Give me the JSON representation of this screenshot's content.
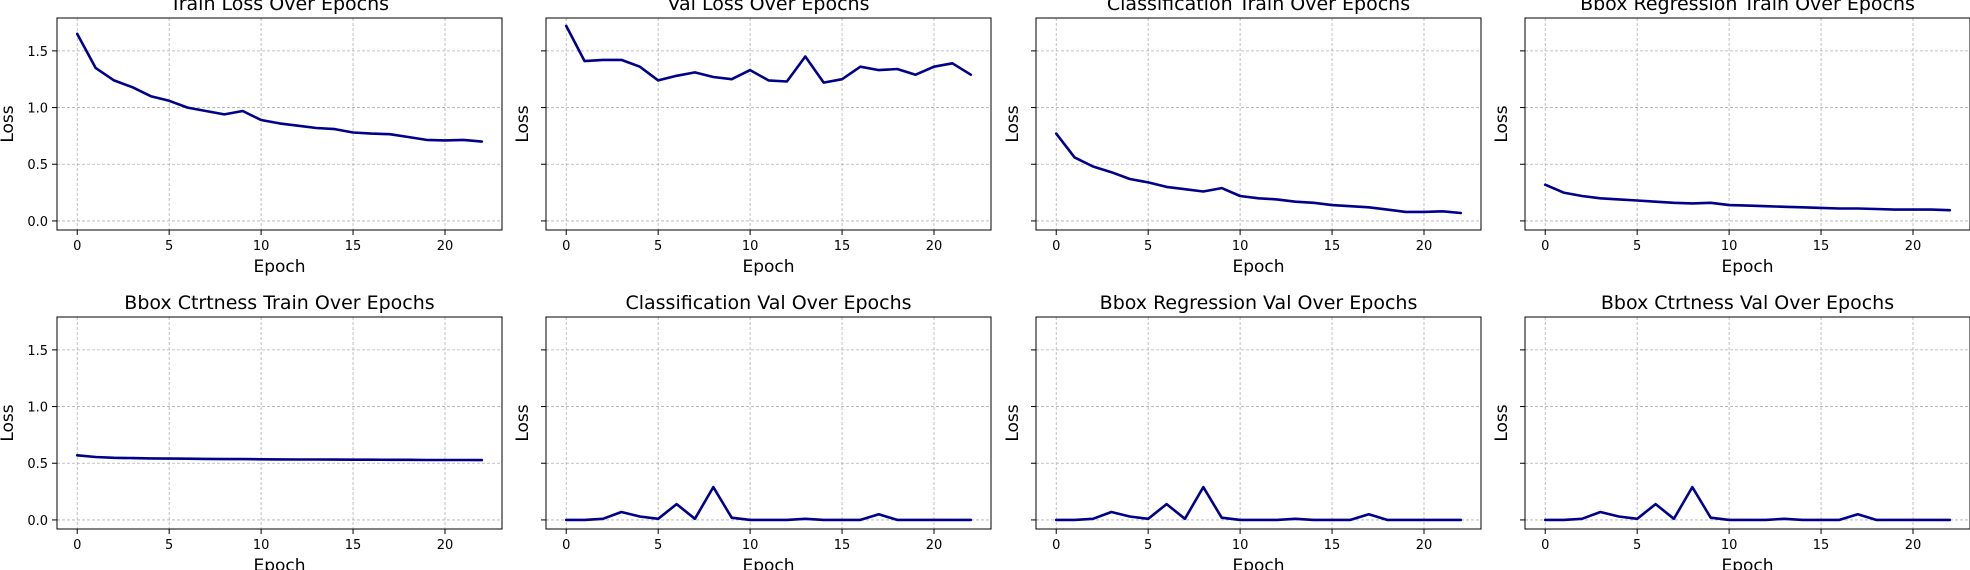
{
  "figure": {
    "line_color": "#00008b",
    "grid_color": "#b0b0b0"
  },
  "chart_data": [
    {
      "type": "line",
      "title": "Train Loss Over Epochs",
      "xlabel": "Epoch",
      "ylabel": "Loss",
      "xlim": [
        -1.1,
        23.1
      ],
      "ylim": [
        -0.08,
        1.79
      ],
      "xticks": [
        0,
        5,
        10,
        15,
        20
      ],
      "yticks": [
        0.0,
        0.5,
        1.0,
        1.5
      ],
      "ytick_labels": [
        "0.0",
        "0.5",
        "1.0",
        "1.5"
      ],
      "show_ytick_labels": true,
      "grid": true,
      "x": [
        0,
        1,
        2,
        3,
        4,
        5,
        6,
        7,
        8,
        9,
        10,
        11,
        12,
        13,
        14,
        15,
        16,
        17,
        18,
        19,
        20,
        21,
        22
      ],
      "series": [
        {
          "values": [
            1.65,
            1.35,
            1.24,
            1.18,
            1.1,
            1.06,
            1.0,
            0.97,
            0.94,
            0.97,
            0.89,
            0.86,
            0.84,
            0.82,
            0.81,
            0.78,
            0.77,
            0.765,
            0.74,
            0.715,
            0.71,
            0.715,
            0.7
          ]
        }
      ]
    },
    {
      "type": "line",
      "title": "Val Loss Over Epochs",
      "xlabel": "Epoch",
      "ylabel": "Loss",
      "xlim": [
        -1.1,
        23.1
      ],
      "ylim": [
        -0.08,
        1.79
      ],
      "xticks": [
        0,
        5,
        10,
        15,
        20
      ],
      "yticks": [
        0.0,
        0.5,
        1.0,
        1.5
      ],
      "ytick_labels": [
        "0.0",
        "0.5",
        "1.0",
        "1.5"
      ],
      "show_ytick_labels": false,
      "grid": true,
      "x": [
        0,
        1,
        2,
        3,
        4,
        5,
        6,
        7,
        8,
        9,
        10,
        11,
        12,
        13,
        14,
        15,
        16,
        17,
        18,
        19,
        20,
        21,
        22
      ],
      "series": [
        {
          "values": [
            1.72,
            1.41,
            1.42,
            1.42,
            1.36,
            1.24,
            1.28,
            1.31,
            1.27,
            1.25,
            1.33,
            1.24,
            1.23,
            1.45,
            1.22,
            1.25,
            1.36,
            1.33,
            1.34,
            1.29,
            1.36,
            1.39,
            1.29
          ]
        }
      ]
    },
    {
      "type": "line",
      "title": "Classification Train Over Epochs",
      "xlabel": "Epoch",
      "ylabel": "Loss",
      "xlim": [
        -1.1,
        23.1
      ],
      "ylim": [
        -0.08,
        1.79
      ],
      "xticks": [
        0,
        5,
        10,
        15,
        20
      ],
      "yticks": [
        0.0,
        0.5,
        1.0,
        1.5
      ],
      "ytick_labels": [
        "0.0",
        "0.5",
        "1.0",
        "1.5"
      ],
      "show_ytick_labels": false,
      "grid": true,
      "x": [
        0,
        1,
        2,
        3,
        4,
        5,
        6,
        7,
        8,
        9,
        10,
        11,
        12,
        13,
        14,
        15,
        16,
        17,
        18,
        19,
        20,
        21,
        22
      ],
      "series": [
        {
          "values": [
            0.77,
            0.56,
            0.48,
            0.43,
            0.37,
            0.34,
            0.3,
            0.28,
            0.26,
            0.29,
            0.22,
            0.2,
            0.19,
            0.17,
            0.16,
            0.14,
            0.13,
            0.12,
            0.1,
            0.08,
            0.08,
            0.085,
            0.07
          ]
        }
      ]
    },
    {
      "type": "line",
      "title": "Bbox Regression Train Over Epochs",
      "xlabel": "Epoch",
      "ylabel": "Loss",
      "xlim": [
        -1.1,
        23.1
      ],
      "ylim": [
        -0.08,
        1.79
      ],
      "xticks": [
        0,
        5,
        10,
        15,
        20
      ],
      "yticks": [
        0.0,
        0.5,
        1.0,
        1.5
      ],
      "ytick_labels": [
        "0.0",
        "0.5",
        "1.0",
        "1.5"
      ],
      "show_ytick_labels": false,
      "grid": true,
      "x": [
        0,
        1,
        2,
        3,
        4,
        5,
        6,
        7,
        8,
        9,
        10,
        11,
        12,
        13,
        14,
        15,
        16,
        17,
        18,
        19,
        20,
        21,
        22
      ],
      "series": [
        {
          "values": [
            0.32,
            0.25,
            0.22,
            0.2,
            0.19,
            0.18,
            0.17,
            0.16,
            0.155,
            0.16,
            0.14,
            0.135,
            0.13,
            0.125,
            0.12,
            0.115,
            0.11,
            0.11,
            0.105,
            0.1,
            0.1,
            0.1,
            0.095
          ]
        }
      ]
    },
    {
      "type": "line",
      "title": "Bbox Ctrtness Train Over Epochs",
      "xlabel": "Epoch",
      "ylabel": "Loss",
      "xlim": [
        -1.1,
        23.1
      ],
      "ylim": [
        -0.08,
        1.79
      ],
      "xticks": [
        0,
        5,
        10,
        15,
        20
      ],
      "yticks": [
        0.0,
        0.5,
        1.0,
        1.5
      ],
      "ytick_labels": [
        "0.0",
        "0.5",
        "1.0",
        "1.5"
      ],
      "show_ytick_labels": true,
      "grid": true,
      "x": [
        0,
        1,
        2,
        3,
        4,
        5,
        6,
        7,
        8,
        9,
        10,
        11,
        12,
        13,
        14,
        15,
        16,
        17,
        18,
        19,
        20,
        21,
        22
      ],
      "series": [
        {
          "values": [
            0.57,
            0.555,
            0.548,
            0.545,
            0.543,
            0.541,
            0.54,
            0.538,
            0.537,
            0.537,
            0.535,
            0.534,
            0.533,
            0.533,
            0.532,
            0.531,
            0.531,
            0.53,
            0.53,
            0.529,
            0.529,
            0.529,
            0.528
          ]
        }
      ]
    },
    {
      "type": "line",
      "title": "Classification Val Over Epochs",
      "xlabel": "Epoch",
      "ylabel": "Loss",
      "xlim": [
        -1.1,
        23.1
      ],
      "ylim": [
        -0.08,
        1.79
      ],
      "xticks": [
        0,
        5,
        10,
        15,
        20
      ],
      "yticks": [
        0.0,
        0.5,
        1.0,
        1.5
      ],
      "ytick_labels": [
        "0.0",
        "0.5",
        "1.0",
        "1.5"
      ],
      "show_ytick_labels": false,
      "grid": true,
      "x": [
        0,
        1,
        2,
        3,
        4,
        5,
        6,
        7,
        8,
        9,
        10,
        11,
        12,
        13,
        14,
        15,
        16,
        17,
        18,
        19,
        20,
        21,
        22
      ],
      "series": [
        {
          "values": [
            0.0,
            0.0,
            0.01,
            0.07,
            0.03,
            0.01,
            0.14,
            0.01,
            0.29,
            0.02,
            0.0,
            0.0,
            0.0,
            0.01,
            0.0,
            0.0,
            0.0,
            0.05,
            0.0,
            0.0,
            0.0,
            0.0,
            0.0
          ]
        }
      ]
    },
    {
      "type": "line",
      "title": "Bbox Regression Val Over Epochs",
      "xlabel": "Epoch",
      "ylabel": "Loss",
      "xlim": [
        -1.1,
        23.1
      ],
      "ylim": [
        -0.08,
        1.79
      ],
      "xticks": [
        0,
        5,
        10,
        15,
        20
      ],
      "yticks": [
        0.0,
        0.5,
        1.0,
        1.5
      ],
      "ytick_labels": [
        "0.0",
        "0.5",
        "1.0",
        "1.5"
      ],
      "show_ytick_labels": false,
      "grid": true,
      "x": [
        0,
        1,
        2,
        3,
        4,
        5,
        6,
        7,
        8,
        9,
        10,
        11,
        12,
        13,
        14,
        15,
        16,
        17,
        18,
        19,
        20,
        21,
        22
      ],
      "series": [
        {
          "values": [
            0.0,
            0.0,
            0.01,
            0.07,
            0.03,
            0.01,
            0.14,
            0.01,
            0.29,
            0.02,
            0.0,
            0.0,
            0.0,
            0.01,
            0.0,
            0.0,
            0.0,
            0.05,
            0.0,
            0.0,
            0.0,
            0.0,
            0.0
          ]
        }
      ]
    },
    {
      "type": "line",
      "title": "Bbox Ctrtness Val Over Epochs",
      "xlabel": "Epoch",
      "ylabel": "Loss",
      "xlim": [
        -1.1,
        23.1
      ],
      "ylim": [
        -0.08,
        1.79
      ],
      "xticks": [
        0,
        5,
        10,
        15,
        20
      ],
      "yticks": [
        0.0,
        0.5,
        1.0,
        1.5
      ],
      "ytick_labels": [
        "0.0",
        "0.5",
        "1.0",
        "1.5"
      ],
      "show_ytick_labels": false,
      "grid": true,
      "x": [
        0,
        1,
        2,
        3,
        4,
        5,
        6,
        7,
        8,
        9,
        10,
        11,
        12,
        13,
        14,
        15,
        16,
        17,
        18,
        19,
        20,
        21,
        22
      ],
      "series": [
        {
          "values": [
            0.0,
            0.0,
            0.01,
            0.07,
            0.03,
            0.01,
            0.14,
            0.01,
            0.29,
            0.02,
            0.0,
            0.0,
            0.0,
            0.01,
            0.0,
            0.0,
            0.0,
            0.05,
            0.0,
            0.0,
            0.0,
            0.0,
            0.0
          ]
        }
      ]
    }
  ]
}
